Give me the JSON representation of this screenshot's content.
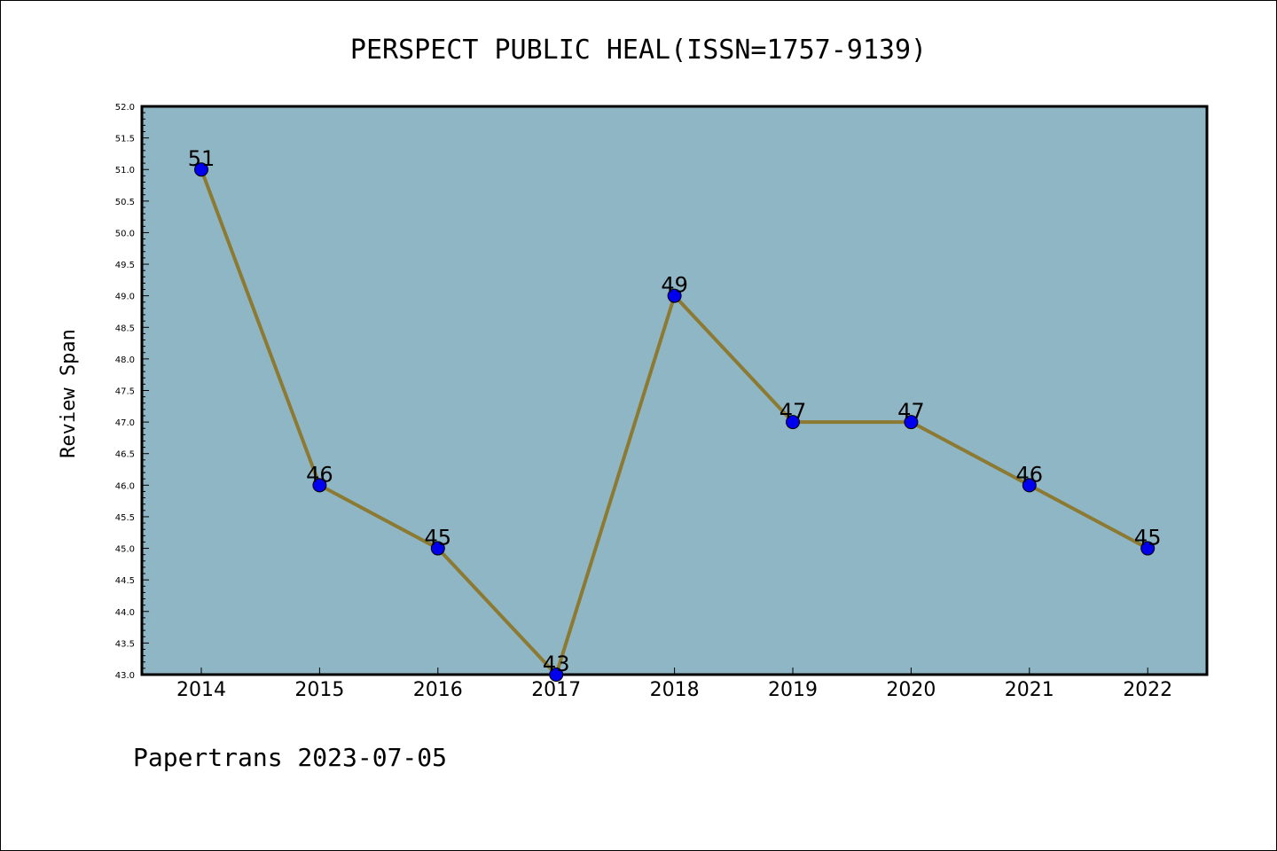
{
  "chart_data": {
    "type": "line",
    "title": "PERSPECT PUBLIC HEAL(ISSN=1757-9139)",
    "xlabel": "",
    "ylabel": "Review Span",
    "categories": [
      "2014",
      "2015",
      "2016",
      "2017",
      "2018",
      "2019",
      "2020",
      "2021",
      "2022"
    ],
    "series": [
      {
        "values": [
          51,
          46,
          45,
          43,
          49,
          47,
          47,
          46,
          45
        ]
      }
    ],
    "data_labels": [
      "51",
      "46",
      "45",
      "43",
      "49",
      "47",
      "47",
      "46",
      "45"
    ],
    "ylim": [
      43.0,
      52.0
    ],
    "yticks": [
      "43.0",
      "43.5",
      "44.0",
      "44.5",
      "45.0",
      "45.5",
      "46.0",
      "46.5",
      "47.0",
      "47.5",
      "48.0",
      "48.5",
      "49.0",
      "49.5",
      "50.0",
      "50.5",
      "51.0",
      "51.5",
      "52.0"
    ],
    "grid": false,
    "colors": {
      "plot_background": "#8fb6c5",
      "line": "#8c7a32",
      "marker": "#0000ee"
    }
  },
  "footer": {
    "credit": "Papertrans 2023-07-05"
  }
}
